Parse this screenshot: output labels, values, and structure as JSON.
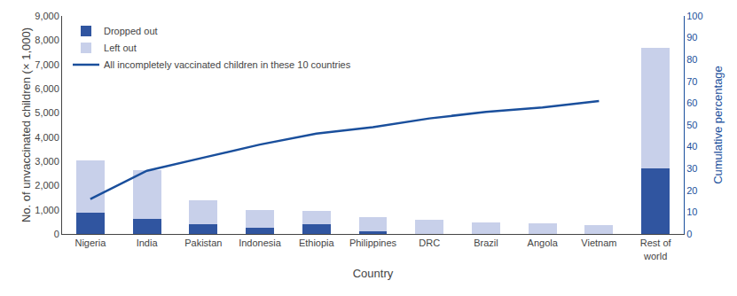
{
  "chart_data": {
    "type": "bar",
    "stacked": true,
    "categories": [
      "Nigeria",
      "India",
      "Pakistan",
      "Indonesia",
      "Ethiopia",
      "Philippines",
      "DRC",
      "Brazil",
      "Angola",
      "Vietnam",
      "Rest of\nworld"
    ],
    "series": [
      {
        "name": "Dropped out",
        "type": "bar",
        "color": "#3055a0",
        "values": [
          870,
          620,
          400,
          240,
          390,
          100,
          0,
          0,
          0,
          0,
          2700
        ]
      },
      {
        "name": "Left out",
        "type": "bar",
        "color": "#c8d0ea",
        "values": [
          2150,
          2000,
          1000,
          750,
          550,
          580,
          590,
          480,
          440,
          360,
          5000
        ]
      },
      {
        "name": "All incompletely vaccinated children in these 10 countries",
        "type": "line",
        "axis": "y2",
        "color": "#1a4f9c",
        "values": [
          16,
          29,
          35,
          41,
          46,
          49,
          53,
          56,
          58,
          61,
          null
        ]
      }
    ],
    "xlabel": "Country",
    "ylabel": "No. of unvaccinated children (× 1,000)",
    "y2label": "Cumulative percentage",
    "ylim": [
      0,
      9000
    ],
    "yticks": [
      0,
      {
        "value": 1000,
        "label": "1,000"
      },
      {
        "value": 2000,
        "label": "2,000"
      },
      {
        "value": 3000,
        "label": "3,000"
      },
      {
        "value": 4000,
        "label": "4,000"
      },
      {
        "value": 5000,
        "label": "5,000"
      },
      {
        "value": 6000,
        "label": "6,000"
      },
      {
        "value": 7000,
        "label": "7,000"
      },
      {
        "value": 8000,
        "label": "8,000"
      },
      {
        "value": 9000,
        "label": "9,000"
      }
    ],
    "y2lim": [
      0,
      100
    ],
    "y2ticks": [
      0,
      10,
      20,
      30,
      40,
      50,
      60,
      70,
      80,
      90,
      100
    ],
    "grid": false,
    "legend": "upper left"
  }
}
